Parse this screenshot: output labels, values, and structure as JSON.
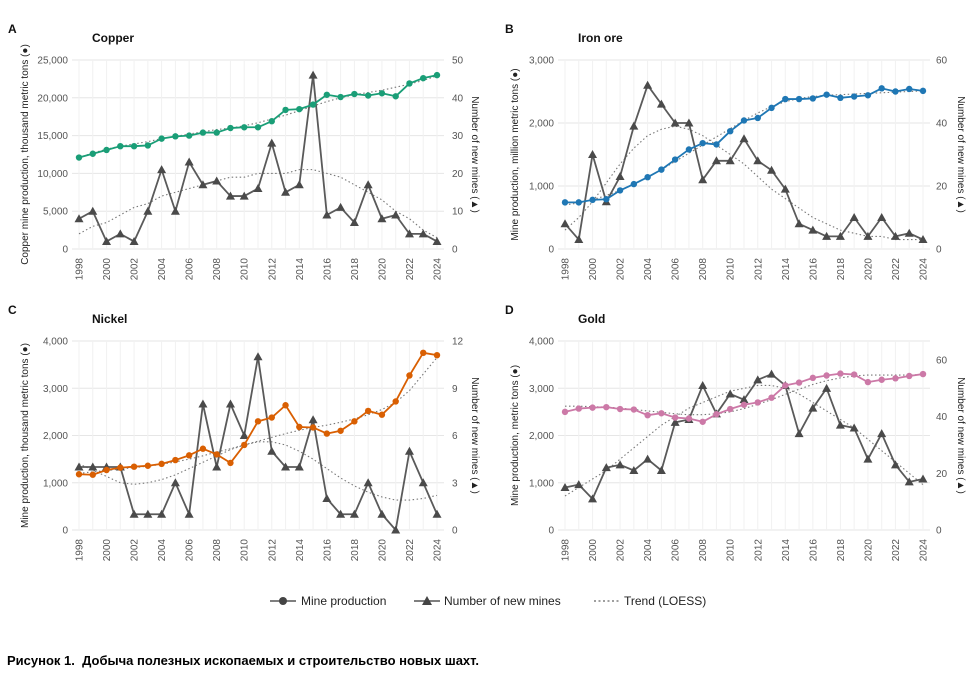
{
  "chart_data": [
    {
      "type": "line",
      "panel": "A",
      "title": "Copper",
      "color": "#1a9e77",
      "ylabel_left": "Copper mine production, thousand metric tons (●)",
      "ylabel_right": "Number of new mines (▲)",
      "x": [
        1998,
        1999,
        2000,
        2001,
        2002,
        2003,
        2004,
        2005,
        2006,
        2007,
        2008,
        2009,
        2010,
        2011,
        2012,
        2013,
        2014,
        2015,
        2016,
        2017,
        2018,
        2019,
        2020,
        2021,
        2022,
        2023,
        2024
      ],
      "xticks": [
        1998,
        2000,
        2002,
        2004,
        2006,
        2008,
        2010,
        2012,
        2014,
        2016,
        2018,
        2020,
        2022,
        2024
      ],
      "ylim_left": [
        0,
        25000
      ],
      "yticks_left": [
        0,
        5000,
        10000,
        15000,
        20000,
        25000
      ],
      "ytick_labels_left": [
        "0",
        "5,000",
        "10,000",
        "15,000",
        "20,000",
        "25,000"
      ],
      "ylim_right": [
        0,
        50
      ],
      "yticks_right": [
        0,
        10,
        20,
        30,
        40,
        50
      ],
      "ytick_labels_right": [
        "0",
        "10",
        "20",
        "30",
        "40",
        "50"
      ],
      "production": [
        12100,
        12600,
        13100,
        13600,
        13600,
        13700,
        14600,
        14900,
        15000,
        15400,
        15400,
        16000,
        16100,
        16100,
        16900,
        18400,
        18500,
        19100,
        20400,
        20100,
        20500,
        20300,
        20600,
        20200,
        21900,
        22600,
        23000
      ],
      "new_mines": [
        8,
        10,
        2,
        4,
        2,
        10,
        21,
        10,
        23,
        17,
        18,
        14,
        14,
        16,
        28,
        15,
        17,
        46,
        9,
        11,
        7,
        17,
        8,
        9,
        4,
        4,
        2
      ],
      "trend_production": [
        12100,
        12700,
        13200,
        13600,
        13900,
        14200,
        14600,
        14900,
        15200,
        15500,
        15800,
        16000,
        16300,
        16700,
        17200,
        17700,
        18300,
        18900,
        19500,
        20000,
        20400,
        20700,
        21000,
        21400,
        21800,
        22300,
        22900
      ],
      "trend_new_mines": [
        4,
        6,
        7,
        9,
        11,
        12,
        14,
        15,
        16,
        17,
        18,
        19,
        19,
        20,
        20,
        20,
        21,
        21,
        20,
        19,
        17,
        15,
        13,
        10,
        8,
        5,
        3
      ]
    },
    {
      "type": "line",
      "panel": "B",
      "title": "Iron ore",
      "color": "#1f77b4",
      "ylabel_left": "Mine production, million metric tons (●)",
      "ylabel_right": "Number of new mines (▲)",
      "x": [
        1998,
        1999,
        2000,
        2001,
        2002,
        2003,
        2004,
        2005,
        2006,
        2007,
        2008,
        2009,
        2010,
        2011,
        2012,
        2013,
        2014,
        2015,
        2016,
        2017,
        2018,
        2019,
        2020,
        2021,
        2022,
        2023,
        2024
      ],
      "xticks": [
        1998,
        2000,
        2002,
        2004,
        2006,
        2008,
        2010,
        2012,
        2014,
        2016,
        2018,
        2020,
        2022,
        2024
      ],
      "ylim_left": [
        0,
        3000
      ],
      "yticks_left": [
        0,
        1000,
        2000,
        3000
      ],
      "ytick_labels_left": [
        "0",
        "1,000",
        "2,000",
        "3,000"
      ],
      "ylim_right": [
        0,
        60
      ],
      "yticks_right": [
        0,
        20,
        40,
        60
      ],
      "ytick_labels_right": [
        "0",
        "20",
        "40",
        "60"
      ],
      "production": [
        740,
        740,
        780,
        790,
        930,
        1030,
        1140,
        1260,
        1420,
        1580,
        1680,
        1660,
        1870,
        2040,
        2080,
        2240,
        2380,
        2380,
        2390,
        2450,
        2400,
        2420,
        2440,
        2550,
        2500,
        2540,
        2510
      ],
      "new_mines": [
        8,
        3,
        30,
        15,
        23,
        39,
        52,
        46,
        40,
        40,
        22,
        28,
        28,
        35,
        28,
        25,
        19,
        8,
        6,
        4,
        4,
        10,
        4,
        10,
        4,
        5,
        3
      ],
      "trend_production": [
        700,
        730,
        780,
        850,
        930,
        1030,
        1140,
        1260,
        1390,
        1520,
        1650,
        1780,
        1910,
        2040,
        2160,
        2260,
        2340,
        2390,
        2420,
        2440,
        2450,
        2460,
        2470,
        2480,
        2490,
        2500,
        2510
      ],
      "trend_new_mines": [
        6,
        10,
        15,
        21,
        27,
        32,
        36,
        38,
        39,
        38,
        36,
        33,
        30,
        27,
        23,
        19,
        16,
        13,
        10,
        8,
        6,
        5,
        4,
        4,
        3,
        3,
        3
      ]
    },
    {
      "type": "line",
      "panel": "C",
      "title": "Nickel",
      "color": "#d95f02",
      "ylabel_left": "Mine production, thousand metric tons (●)",
      "ylabel_right": "Number of new mines (▲)",
      "x": [
        1998,
        1999,
        2000,
        2001,
        2002,
        2003,
        2004,
        2005,
        2006,
        2007,
        2008,
        2009,
        2010,
        2011,
        2012,
        2013,
        2014,
        2015,
        2016,
        2017,
        2018,
        2019,
        2020,
        2021,
        2022,
        2023,
        2024
      ],
      "xticks": [
        1998,
        2000,
        2002,
        2004,
        2006,
        2008,
        2010,
        2012,
        2014,
        2016,
        2018,
        2020,
        2022,
        2024
      ],
      "ylim_left": [
        0,
        4000
      ],
      "yticks_left": [
        0,
        1000,
        2000,
        3000,
        4000
      ],
      "ytick_labels_left": [
        "0",
        "1,000",
        "2,000",
        "3,000",
        "4,000"
      ],
      "ylim_right": [
        0,
        12
      ],
      "yticks_right": [
        0,
        3,
        6,
        9,
        12
      ],
      "ytick_labels_right": [
        "0",
        "3",
        "6",
        "9",
        "12"
      ],
      "production": [
        1180,
        1170,
        1270,
        1320,
        1340,
        1360,
        1400,
        1480,
        1580,
        1720,
        1600,
        1420,
        1800,
        2300,
        2380,
        2640,
        2180,
        2170,
        2040,
        2100,
        2300,
        2520,
        2440,
        2720,
        3270,
        3750,
        3700
      ],
      "new_mines": [
        4,
        4,
        4,
        4,
        1,
        1,
        1,
        3,
        1,
        8,
        4,
        8,
        6,
        11,
        5,
        4,
        4,
        7,
        2,
        1,
        1,
        3,
        1,
        0,
        5,
        3,
        1
      ],
      "trend_production": [
        1200,
        1230,
        1260,
        1290,
        1320,
        1350,
        1390,
        1440,
        1500,
        1570,
        1650,
        1720,
        1800,
        1880,
        1960,
        2040,
        2110,
        2170,
        2220,
        2280,
        2350,
        2440,
        2550,
        2700,
        2950,
        3300,
        3650
      ],
      "trend_new_mines": [
        4.2,
        3.8,
        3.4,
        3.0,
        2.9,
        3.0,
        3.2,
        3.5,
        3.9,
        4.3,
        4.7,
        5.1,
        5.4,
        5.6,
        5.6,
        5.4,
        5.0,
        4.5,
        3.9,
        3.3,
        2.8,
        2.4,
        2.1,
        1.9,
        1.9,
        2.0,
        2.2
      ]
    },
    {
      "type": "line",
      "panel": "D",
      "title": "Gold",
      "color": "#cc79a7",
      "ylabel_left": "Mine production, metric tons (●)",
      "ylabel_right": "Number of new mines (▲)",
      "x": [
        1998,
        1999,
        2000,
        2001,
        2002,
        2003,
        2004,
        2005,
        2006,
        2007,
        2008,
        2009,
        2010,
        2011,
        2012,
        2013,
        2014,
        2015,
        2016,
        2017,
        2018,
        2019,
        2020,
        2021,
        2022,
        2023,
        2024
      ],
      "xticks": [
        1998,
        2000,
        2002,
        2004,
        2006,
        2008,
        2010,
        2012,
        2014,
        2016,
        2018,
        2020,
        2022,
        2024
      ],
      "ylim_left": [
        0,
        4000
      ],
      "yticks_left": [
        0,
        1000,
        2000,
        3000,
        4000
      ],
      "ytick_labels_left": [
        "0",
        "1,000",
        "2,000",
        "3,000",
        "4,000"
      ],
      "ylim_right": [
        0,
        66.7
      ],
      "yticks_right": [
        0,
        20,
        40,
        60
      ],
      "ytick_labels_right": [
        "0",
        "20",
        "40",
        "60"
      ],
      "production": [
        2500,
        2570,
        2590,
        2600,
        2560,
        2550,
        2430,
        2470,
        2380,
        2360,
        2290,
        2450,
        2560,
        2650,
        2700,
        2800,
        3060,
        3120,
        3220,
        3270,
        3310,
        3290,
        3130,
        3180,
        3210,
        3260,
        3300
      ],
      "new_mines": [
        15,
        16,
        11,
        22,
        23,
        21,
        25,
        21,
        38,
        39,
        51,
        41,
        48,
        46,
        53,
        55,
        51,
        34,
        43,
        50,
        37,
        36,
        25,
        34,
        23,
        17,
        18
      ],
      "trend_production": [
        2620,
        2620,
        2610,
        2600,
        2580,
        2550,
        2520,
        2490,
        2460,
        2440,
        2440,
        2460,
        2500,
        2570,
        2660,
        2760,
        2870,
        2980,
        3080,
        3160,
        3220,
        3260,
        3280,
        3280,
        3280,
        3280,
        3290
      ],
      "trend_new_mines": [
        12,
        15,
        18,
        21,
        25,
        29,
        33,
        37,
        40,
        43,
        45,
        47,
        49,
        50,
        51,
        51,
        50,
        48,
        45,
        42,
        39,
        36,
        32,
        28,
        24,
        20,
        16
      ]
    }
  ],
  "legend": {
    "production_label": "Mine production",
    "new_mines_label": "Number of new mines",
    "trend_label": "Trend (LOESS)"
  },
  "caption": {
    "label": "Рисунок 1.",
    "text": "Добыча полезных ископаемых и строительство новых шахт."
  }
}
